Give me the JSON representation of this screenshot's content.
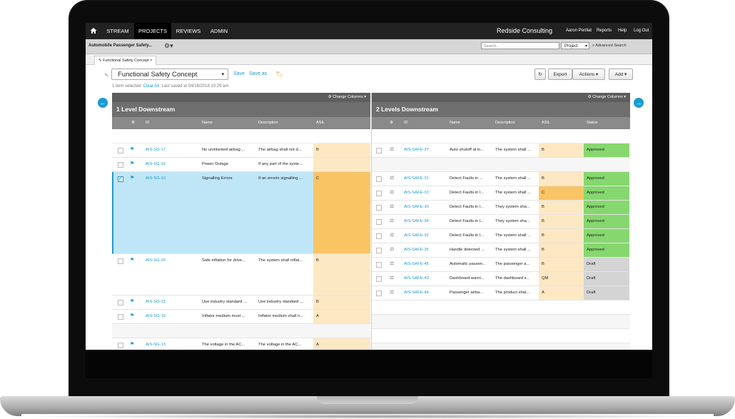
{
  "nav": {
    "tabs": [
      "STREAM",
      "PROJECTS",
      "REVIEWS",
      "ADMIN"
    ],
    "org": "Redside Consulting",
    "user": "Aaron Perillat",
    "links": [
      "Reports",
      "Help",
      "Log Out"
    ]
  },
  "subbar": {
    "project": "Automobile Passenger Safety...",
    "search_placeholder": "Search...",
    "scope": "Project",
    "advanced_search": "Advanced Search"
  },
  "doc_tab": "Functional Safety Concept",
  "toolbar": {
    "title": "Functional Safety Concept",
    "save": "Save",
    "save_as": "Save as",
    "export": "Export",
    "actions": "Actions",
    "add": "Add",
    "selected_info": "1 item selected",
    "clear_all": "Clear All",
    "last_saved": "Last saved at 04/18/2018 10:29 am"
  },
  "left_panel": {
    "change_columns": "Change Columns",
    "title": "1 Level Downstream",
    "columns": [
      "ID",
      "Name",
      "Description",
      "ASIL"
    ],
    "rows": [
      {
        "id": "AIS-SG-17",
        "name": "No unintented airbag ...",
        "desc": "The airbag shall not d...",
        "asil": "B"
      },
      {
        "id": "AIS-SG-16",
        "name": "Power Outage",
        "desc": "If any part of the syste...",
        "asil": ""
      },
      {
        "id": "AIS-SG-10",
        "name": "Signalling Errors",
        "desc": "If an errorin signalling ...",
        "asil": "C"
      },
      {
        "id": "AIS-SG-20",
        "name": "Safe inflation for drive...",
        "desc": "The system shall inflat...",
        "asil": "B"
      },
      {
        "id": "AIS-SG-21",
        "name": "Use industry standard ...",
        "desc": "Use industry standard ...",
        "asil": "B"
      },
      {
        "id": "AIS-SG-19",
        "name": "Inflator medium must ...",
        "desc": "Inflator medium shall n...",
        "asil": "A"
      },
      {
        "id": "AIS-SG-13",
        "name": "The voltage in the AC...",
        "desc": "The voltage in the AC...",
        "asil": "A"
      }
    ]
  },
  "right_panel": {
    "change_columns": "Change Columns",
    "title": "2 Levels Downstream",
    "columns": [
      "ID",
      "Name",
      "Description",
      "ASIL",
      "Status"
    ],
    "rows": [
      {
        "id": "AIS-SAFE-37",
        "name": "Auto shutoff at lo...",
        "desc": "The system shall ...",
        "asil": "B",
        "status": "Approved"
      },
      {
        "id": "AIS-SAFE-31",
        "name": "Detect Faults in ...",
        "desc": "The system shall ...",
        "asil": "B",
        "status": "Approved"
      },
      {
        "id": "AIS-SAFE-33",
        "name": "Detect Faults in l...",
        "desc": "The system shall ...",
        "asil": "C",
        "status": "Approved"
      },
      {
        "id": "AIS-SAFE-30",
        "name": "Detect Faults in l...",
        "desc": "They system sha...",
        "asil": "B",
        "status": "Approved"
      },
      {
        "id": "AIS-SAFE-34",
        "name": "Detect Faults in l...",
        "desc": "They system sha...",
        "asil": "B",
        "status": "Approved"
      },
      {
        "id": "AIS-SAFE-32",
        "name": "Detect Faults in l...",
        "desc": "The system shall ...",
        "asil": "B",
        "status": "Approved"
      },
      {
        "id": "AIS-SAFE-35",
        "name": "Handle detected ...",
        "desc": "The system shall ...",
        "asil": "B",
        "status": "Approved"
      },
      {
        "id": "AIS-SAFE-45",
        "name": "Automatic passen...",
        "desc": "The passenger a...",
        "asil": "B",
        "status": "Draft"
      },
      {
        "id": "AIS-SAFE-43",
        "name": "Dashboard warni...",
        "desc": "The dashboard s...",
        "asil": "QM",
        "status": "Draft"
      },
      {
        "id": "AIS-SAFE-44",
        "name": "Passenger airba...",
        "desc": "The product shal...",
        "asil": "A",
        "status": "Draft"
      }
    ]
  },
  "colors": {
    "accent": "#1a9ad6",
    "approved": "#86d86e",
    "draft": "#d4d4d4",
    "asil": "#fde8c4",
    "asil_high": "#f9c464"
  }
}
